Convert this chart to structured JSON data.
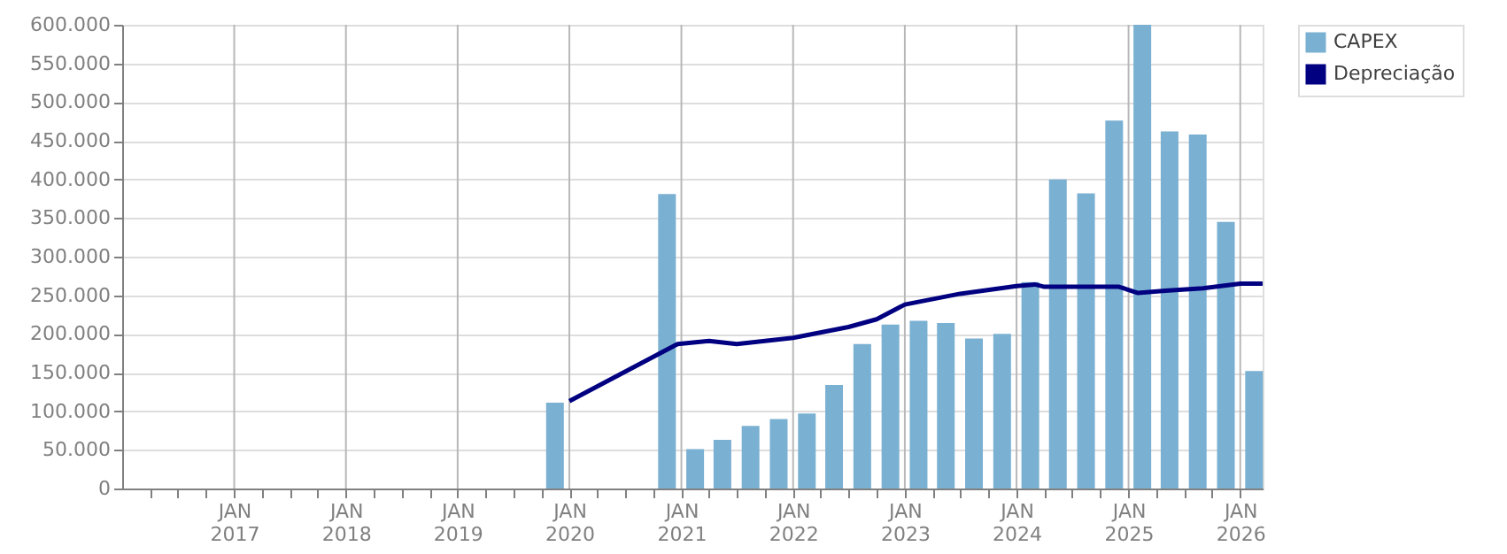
{
  "chart_data": {
    "type": "bar",
    "x": [
      "2019-11-15",
      "2020-11-15",
      "2021-02-15",
      "2021-05-15",
      "2021-08-15",
      "2021-11-15",
      "2022-02-15",
      "2022-05-15",
      "2022-08-15",
      "2022-11-15",
      "2023-02-15",
      "2023-05-15",
      "2023-08-15",
      "2023-11-15",
      "2024-02-15",
      "2024-05-15",
      "2024-08-15",
      "2024-11-15",
      "2025-02-15",
      "2025-05-15",
      "2025-08-15",
      "2025-11-15",
      "2026-02-15"
    ],
    "series": [
      {
        "name": "CAPEX",
        "color": "#7ab0d2",
        "values": [
          111000,
          381000,
          51000,
          63000,
          81000,
          90000,
          97000,
          134000,
          187000,
          212000,
          217000,
          214000,
          194000,
          200000,
          267000,
          400000,
          382000,
          476000,
          600000,
          462000,
          458000,
          345000,
          152000
        ]
      },
      {
        "name": "Depreciação",
        "type": "line",
        "color": "#000080",
        "x": [
          "2020-01-01",
          "2020-12-20",
          "2021-04-01",
          "2021-07-01",
          "2022-01-01",
          "2022-07-01",
          "2022-10-01",
          "2023-01-01",
          "2023-07-01",
          "2024-01-01",
          "2024-03-01",
          "2024-04-01",
          "2024-12-01",
          "2025-02-01",
          "2025-05-01",
          "2025-09-01",
          "2026-01-01",
          "2026-03-15"
        ],
        "values": [
          113000,
          187000,
          191000,
          187000,
          195000,
          209000,
          219000,
          238000,
          252000,
          262000,
          264000,
          261000,
          261000,
          253000,
          256000,
          259000,
          265000,
          265000
        ]
      }
    ],
    "xlim": [
      "2016-01-01",
      "2026-03-15"
    ],
    "xticks": [
      {
        "value": "2016-04-01",
        "label": null
      },
      {
        "value": "2016-07-01",
        "label": null
      },
      {
        "value": "2016-10-01",
        "label": null
      },
      {
        "value": "2017-01-01",
        "label": "JAN 2017"
      },
      {
        "value": "2017-04-01",
        "label": null
      },
      {
        "value": "2017-07-01",
        "label": null
      },
      {
        "value": "2017-10-01",
        "label": null
      },
      {
        "value": "2018-01-01",
        "label": "JAN 2018"
      },
      {
        "value": "2018-04-01",
        "label": null
      },
      {
        "value": "2018-07-01",
        "label": null
      },
      {
        "value": "2018-10-01",
        "label": null
      },
      {
        "value": "2019-01-01",
        "label": "JAN 2019"
      },
      {
        "value": "2019-04-01",
        "label": null
      },
      {
        "value": "2019-07-01",
        "label": null
      },
      {
        "value": "2019-10-01",
        "label": null
      },
      {
        "value": "2020-01-01",
        "label": "JAN 2020"
      },
      {
        "value": "2020-04-01",
        "label": null
      },
      {
        "value": "2020-07-01",
        "label": null
      },
      {
        "value": "2020-10-01",
        "label": null
      },
      {
        "value": "2021-01-01",
        "label": "JAN 2021"
      },
      {
        "value": "2021-04-01",
        "label": null
      },
      {
        "value": "2021-07-01",
        "label": null
      },
      {
        "value": "2021-10-01",
        "label": null
      },
      {
        "value": "2022-01-01",
        "label": "JAN 2022"
      },
      {
        "value": "2022-04-01",
        "label": null
      },
      {
        "value": "2022-07-01",
        "label": null
      },
      {
        "value": "2022-10-01",
        "label": null
      },
      {
        "value": "2023-01-01",
        "label": "JAN 2023"
      },
      {
        "value": "2023-04-01",
        "label": null
      },
      {
        "value": "2023-07-01",
        "label": null
      },
      {
        "value": "2023-10-01",
        "label": null
      },
      {
        "value": "2024-01-01",
        "label": "JAN 2024"
      },
      {
        "value": "2024-04-01",
        "label": null
      },
      {
        "value": "2024-07-01",
        "label": null
      },
      {
        "value": "2024-10-01",
        "label": null
      },
      {
        "value": "2025-01-01",
        "label": "JAN 2025"
      },
      {
        "value": "2025-04-01",
        "label": null
      },
      {
        "value": "2025-07-01",
        "label": null
      },
      {
        "value": "2025-10-01",
        "label": null
      },
      {
        "value": "2026-01-01",
        "label": "JAN 2026"
      }
    ],
    "ylim": [
      0,
      600000
    ],
    "yticks": [
      0,
      {
        "value": 50000,
        "label": "50.000"
      },
      {
        "value": 100000,
        "label": "100.000"
      },
      {
        "value": 150000,
        "label": "150.000"
      },
      {
        "value": 200000,
        "label": "200.000"
      },
      {
        "value": 250000,
        "label": "250.000"
      },
      {
        "value": 300000,
        "label": "300.000"
      },
      {
        "value": 350000,
        "label": "350.000"
      },
      {
        "value": 400000,
        "label": "400.000"
      },
      {
        "value": 450000,
        "label": "450.000"
      },
      {
        "value": 500000,
        "label": "500.000"
      },
      {
        "value": 550000,
        "label": "550.000"
      },
      {
        "value": 600000,
        "label": "600.000"
      }
    ],
    "grid": true,
    "legend": "top right"
  }
}
